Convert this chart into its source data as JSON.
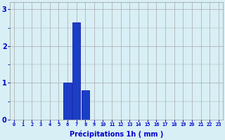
{
  "hours": [
    0,
    1,
    2,
    3,
    4,
    5,
    6,
    7,
    8,
    9,
    10,
    11,
    12,
    13,
    14,
    15,
    16,
    17,
    18,
    19,
    20,
    21,
    22,
    23
  ],
  "values": [
    0,
    0,
    0,
    0,
    0,
    0,
    1.0,
    2.65,
    0.8,
    0,
    0,
    0,
    0,
    0,
    0,
    0,
    0,
    0,
    0,
    0,
    0,
    0,
    0,
    0
  ],
  "bar_color": "#1a3fc4",
  "bar_edge_color": "#0000aa",
  "background_color": "#d8eff5",
  "grid_color": "#aaaaaa",
  "xlabel": "Précipitations 1h ( mm )",
  "xlabel_color": "#0000cc",
  "tick_color": "#0000cc",
  "ylim": [
    0,
    3.2
  ],
  "xlim": [
    -0.5,
    23.5
  ],
  "yticks": [
    0,
    1,
    2,
    3
  ],
  "xtick_labels": [
    "0",
    "1",
    "2",
    "3",
    "4",
    "5",
    "6",
    "7",
    "8",
    "9",
    "10",
    "11",
    "12",
    "13",
    "14",
    "15",
    "16",
    "17",
    "18",
    "19",
    "20",
    "21",
    "22",
    "23"
  ]
}
